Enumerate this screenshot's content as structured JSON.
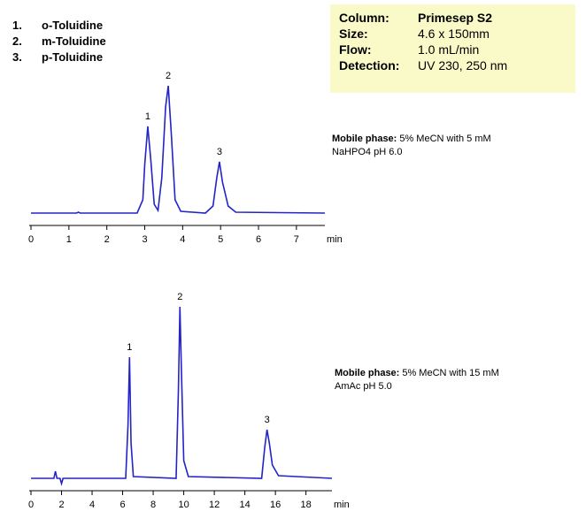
{
  "compounds": [
    {
      "number": "1.",
      "name": "o-Toluidine"
    },
    {
      "number": "2.",
      "name": "m-Toluidine"
    },
    {
      "number": "3.",
      "name": "p-Toluidine"
    }
  ],
  "conditions": [
    {
      "label": "Column:",
      "value": "Primesep S2"
    },
    {
      "label": "Size:",
      "value": "4.6 x 150mm"
    },
    {
      "label": "Flow:",
      "value": "1.0 mL/min"
    },
    {
      "label": "Detection:",
      "value": "UV 230, 250 nm"
    }
  ],
  "chart_data": [
    {
      "type": "line",
      "color": "#2323c8",
      "xlabel": "min",
      "mobile_phase_label": "Mobile phase:",
      "mobile_phase_lines": [
        "5% MeCN with  5 mM",
        "NaHPO4  pH 6.0"
      ],
      "xlim": [
        0,
        7.75
      ],
      "xticks": [
        0,
        1,
        2,
        3,
        4,
        5,
        6,
        7
      ],
      "x": [
        0,
        1.2,
        1.25,
        1.3,
        2.8,
        2.95,
        3.0,
        3.08,
        3.16,
        3.25,
        3.35,
        3.45,
        3.55,
        3.62,
        3.7,
        3.8,
        3.95,
        4.6,
        4.8,
        4.9,
        4.97,
        5.05,
        5.2,
        5.4,
        7.75
      ],
      "values": [
        0,
        0,
        1,
        0,
        0,
        15,
        55,
        98,
        60,
        10,
        3,
        40,
        120,
        144,
        90,
        15,
        2,
        0,
        8,
        40,
        58,
        35,
        8,
        1,
        0
      ],
      "annotations": [
        {
          "text": "1",
          "x": 3.08,
          "y": 98
        },
        {
          "text": "2",
          "x": 3.62,
          "y": 144
        },
        {
          "text": "3",
          "x": 4.97,
          "y": 58
        }
      ]
    },
    {
      "type": "line",
      "color": "#2323c8",
      "xlabel": "min",
      "mobile_phase_label": "Mobile phase:",
      "mobile_phase_lines": [
        "5% MeCN with 15 mM",
        "AmAc pH 5.0"
      ],
      "xlim": [
        0,
        19.7
      ],
      "xticks": [
        0,
        2,
        4,
        6,
        8,
        10,
        12,
        14,
        16,
        18
      ],
      "x": [
        0,
        1.5,
        1.6,
        1.7,
        1.9,
        2.0,
        2.1,
        6.2,
        6.35,
        6.45,
        6.55,
        6.7,
        9.5,
        9.65,
        9.75,
        9.85,
        10.0,
        10.3,
        15.1,
        15.3,
        15.45,
        15.6,
        15.8,
        16.2,
        19.7
      ],
      "values": [
        0,
        0,
        8,
        0,
        0,
        -6,
        0,
        0,
        60,
        137,
        40,
        2,
        0,
        100,
        194,
        120,
        20,
        2,
        0,
        35,
        55,
        40,
        15,
        3,
        0
      ],
      "annotations": [
        {
          "text": "1",
          "x": 6.45,
          "y": 137
        },
        {
          "text": "2",
          "x": 9.75,
          "y": 194
        },
        {
          "text": "3",
          "x": 15.45,
          "y": 55
        }
      ]
    }
  ]
}
